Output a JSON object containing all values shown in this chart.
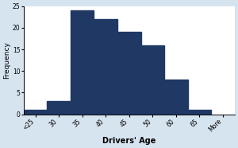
{
  "values": [
    1,
    3,
    24,
    22,
    19,
    16,
    8,
    1
  ],
  "bar_labels": [
    "<25",
    "30",
    "35",
    "40",
    "45",
    "50",
    "60",
    "65"
  ],
  "extra_label": "More",
  "bar_color": "#1F3864",
  "ylabel": "Frequency",
  "xlabel": "Drivers' Age",
  "ylim": [
    0,
    25
  ],
  "yticks": [
    0,
    5,
    10,
    15,
    20,
    25
  ],
  "background_color": "#ffffff",
  "fig_bg_color": "#d6e4f0",
  "ylabel_fontsize": 6.5,
  "xlabel_fontsize": 7,
  "tick_fontsize": 5.5,
  "bar_width": 1.0
}
